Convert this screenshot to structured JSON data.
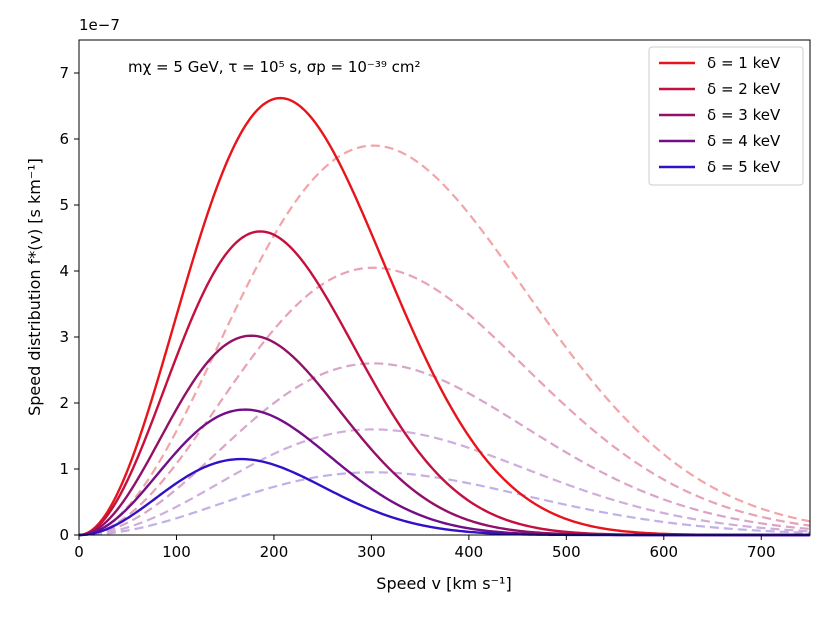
{
  "chart_data": {
    "type": "line",
    "xlabel": "Speed v [km s⁻¹]",
    "ylabel": "Speed distribution f*(v) [s km⁻¹]",
    "y_offset_label": "1e−7",
    "annotation": "mχ = 5 GeV, τ = 10⁵ s, σp = 10⁻³⁹ cm²",
    "xlim": [
      0,
      750
    ],
    "ylim": [
      0,
      7.5
    ],
    "x_ticks": [
      0,
      100,
      200,
      300,
      400,
      500,
      600,
      700
    ],
    "y_ticks": [
      0,
      1,
      2,
      3,
      4,
      5,
      6,
      7
    ],
    "legend_position": "top-right",
    "series": [
      {
        "name": "δ = 1 keV",
        "color": "#e8141b",
        "peak_v": 208,
        "peak_f": 6.62,
        "cutoff_v": 750
      },
      {
        "name": "δ = 2 keV",
        "color": "#c4103e",
        "peak_v": 188,
        "peak_f": 4.6,
        "cutoff_v": 700
      },
      {
        "name": "δ = 3 keV",
        "color": "#921066",
        "peak_v": 178,
        "peak_f": 3.02,
        "cutoff_v": 680
      },
      {
        "name": "δ = 4 keV",
        "color": "#720f88",
        "peak_v": 172,
        "peak_f": 1.9,
        "cutoff_v": 660
      },
      {
        "name": "δ = 5 keV",
        "color": "#3210c8",
        "peak_v": 168,
        "peak_f": 1.15,
        "cutoff_v": 640
      }
    ],
    "reference_series": [
      {
        "color": "#f2a5a8",
        "peak_v": 302,
        "peak_f": 5.9
      },
      {
        "color": "#e8a2b4",
        "peak_v": 302,
        "peak_f": 4.05
      },
      {
        "color": "#d8a5c8",
        "peak_v": 302,
        "peak_f": 2.6
      },
      {
        "color": "#cfaddc",
        "peak_v": 302,
        "peak_f": 1.6
      },
      {
        "color": "#c2b0e6",
        "peak_v": 302,
        "peak_f": 0.95
      }
    ]
  }
}
